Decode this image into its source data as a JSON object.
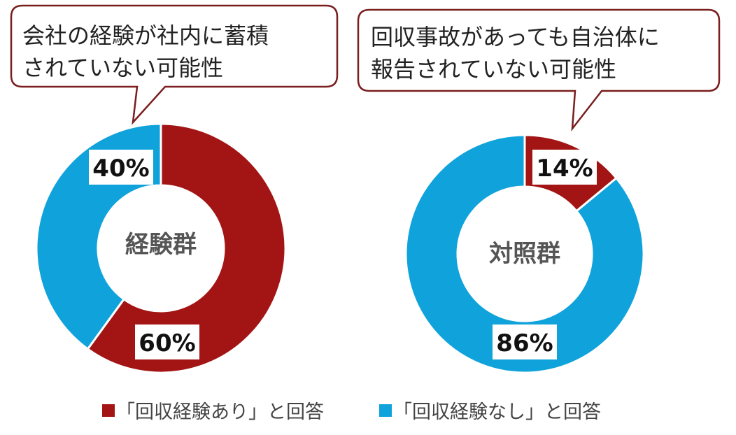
{
  "colors": {
    "red": "#A31515",
    "blue": "#10A3DB",
    "bubble_border": "#7A1E1E",
    "ring_border": "#ffffff"
  },
  "callouts": [
    {
      "lines": [
        "会社の経験が社内に蓄積",
        "されていない可能性"
      ]
    },
    {
      "lines": [
        "回収事故があっても自治体に",
        "報告されていない可能性"
      ]
    }
  ],
  "legend": [
    {
      "label": "「回収経験あり」と回答",
      "color": "#A31515"
    },
    {
      "label": "「回収経験なし」と回答",
      "color": "#10A3DB"
    }
  ],
  "chart_data": [
    {
      "type": "pie",
      "title": "",
      "center_label": "経験群",
      "slices": [
        {
          "category": "「回収経験あり」と回答",
          "value": 60,
          "label": "60%",
          "color": "#A31515"
        },
        {
          "category": "「回収経験なし」と回答",
          "value": 40,
          "label": "40%",
          "color": "#10A3DB"
        }
      ]
    },
    {
      "type": "pie",
      "title": "",
      "center_label": "対照群",
      "slices": [
        {
          "category": "「回収経験あり」と回答",
          "value": 14,
          "label": "14%",
          "color": "#A31515"
        },
        {
          "category": "「回収経験なし」と回答",
          "value": 86,
          "label": "86%",
          "color": "#10A3DB"
        }
      ]
    }
  ]
}
